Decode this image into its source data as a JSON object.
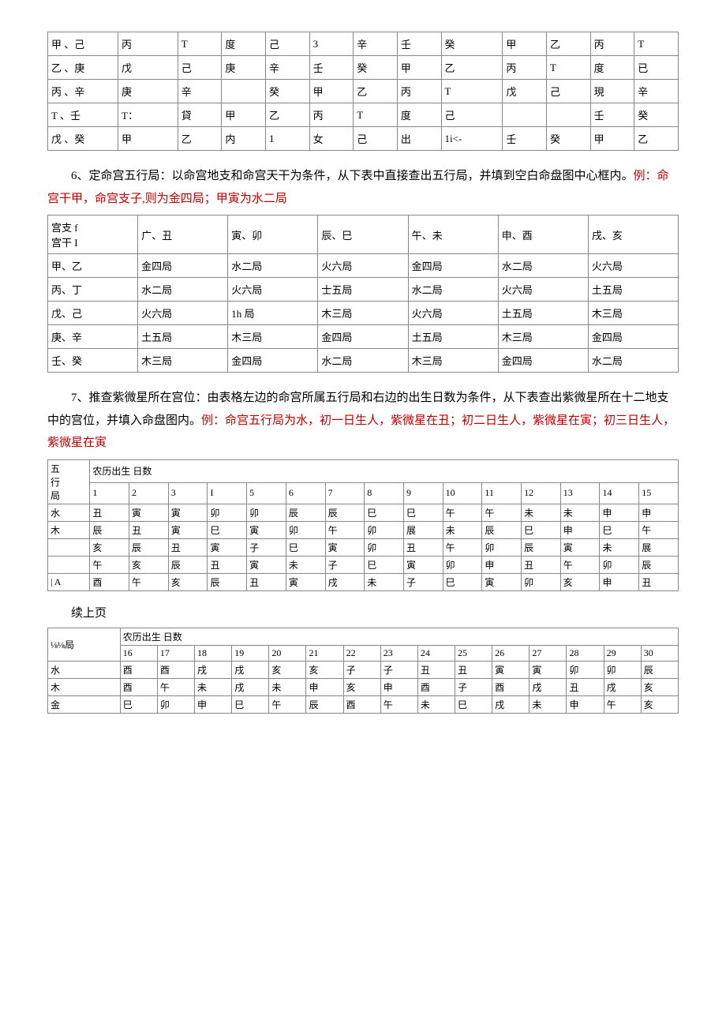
{
  "table1": {
    "rows": [
      [
        "甲 、己",
        "丙",
        "T",
        "度",
        "己",
        "3",
        "辛",
        "壬",
        "癸",
        "甲",
        "乙",
        "丙",
        "T"
      ],
      [
        "乙 、庚",
        "戊",
        "己",
        "庚",
        "辛",
        "壬",
        "癸",
        "甲",
        "乙",
        "丙",
        "T",
        "度",
        "已"
      ],
      [
        "丙 、辛",
        "庚",
        "辛",
        "",
        "癸",
        "甲",
        "乙",
        "丙",
        "T",
        "戊",
        "己",
        "現",
        "辛"
      ],
      [
        "T 、壬",
        "T：",
        "貸",
        "甲",
        "乙",
        "丙",
        "T",
        "度",
        "己",
        "",
        "",
        "壬",
        "癸"
      ],
      [
        "戊 、癸",
        "甲",
        "乙",
        "内",
        "1",
        "女",
        "己",
        "出",
        "1i<-",
        "壬",
        "癸",
        "甲",
        "乙"
      ]
    ]
  },
  "para6": {
    "black": "6、定命宫五行局：以命宫地支和命宫天干为条件，从下表中直接查出五行局，并填到空白命盘图中心框内。",
    "red": "例：命宫干甲，命宫支子,则为金四局；甲寅为水二局"
  },
  "table2": {
    "header_cell": {
      "line1": "宫支 f",
      "line2": "宫干 I"
    },
    "cols": [
      "广、丑",
      "寅、卯",
      "辰、巳",
      "午、未",
      "申、酉",
      "戌、亥"
    ],
    "rows": [
      [
        "甲、乙",
        "金四局",
        "水二局",
        "火六局",
        "金四局",
        "水二局",
        "火六局"
      ],
      [
        "丙、丁",
        "水二局",
        "火六局",
        "士五局",
        "水二局",
        "火六局",
        "土五局"
      ],
      [
        "戊、己",
        "火六局",
        "1h 局",
        "木三局",
        "火六局",
        "土五局",
        "木三局"
      ],
      [
        "庚、辛",
        "土五局",
        "木三局",
        "金四局",
        "土五局",
        "木三局",
        "金四局"
      ],
      [
        "壬、癸",
        "木三局",
        "金四局",
        "水二局",
        "木三局",
        "金四局",
        "水二局"
      ]
    ]
  },
  "para7": {
    "black": "7、推查紫微星所在宫位：由表格左边的命宫所属五行局和右边的出生日数为条件，从下表查出紫微星所在十二地支中的宫位，并填入命盘图内。",
    "red": "例：命宫五行局为水，初一日生人，紫微星在丑；初二日生人，紫微星在寅；初三日生人，紫微星在寅"
  },
  "table3": {
    "corner": {
      "line1": "五",
      "line2": "行",
      "line3": "局"
    },
    "group_header": "农历出生    日数",
    "days": [
      "1",
      "2",
      "3",
      "I",
      "5",
      "6",
      "7",
      "8",
      "9",
      "10",
      "11",
      "12",
      "13",
      "14",
      "15"
    ],
    "rows": [
      [
        "水",
        "丑",
        "寅",
        "寅",
        "卯",
        "卯",
        "辰",
        "辰",
        "巳",
        "巳",
        "午",
        "午",
        "未",
        "未",
        "申",
        "申"
      ],
      [
        "木",
        "辰",
        "丑",
        "寅",
        "巳",
        "寅",
        "卯",
        "午",
        "卯",
        "展",
        "未",
        "辰",
        "巳",
        "申",
        "巳",
        "午"
      ],
      [
        "",
        "亥",
        "辰",
        "丑",
        "寅",
        "子",
        "巳",
        "寅",
        "卯",
        "丑",
        "午",
        "卯",
        "辰",
        "寅",
        "未",
        "展"
      ],
      [
        "",
        "午",
        "亥",
        "辰",
        "丑",
        "寅",
        "未",
        "子",
        "巳",
        "寅",
        "卯",
        "申",
        "丑",
        "午",
        "卯",
        "辰"
      ],
      [
        "| A",
        "酉",
        "午",
        "亥",
        "辰",
        "丑",
        "寅",
        "戌",
        "未",
        "子",
        "巳",
        "寅",
        "卯",
        "亥",
        "申",
        "丑"
      ]
    ]
  },
  "continue_label": "续上页",
  "table4": {
    "corner": "⅛⅛局",
    "group_header": "农历出生    日数",
    "days": [
      "16",
      "17",
      "18",
      "19",
      "20",
      "21",
      "22",
      "23",
      "24",
      "25",
      "26",
      "27",
      "28",
      "29",
      "30"
    ],
    "rows": [
      [
        "水",
        "酉",
        "酉",
        "戌",
        "戌",
        "亥",
        "亥",
        "子",
        "子",
        "丑",
        "丑",
        "寅",
        "寅",
        "卯",
        "卯",
        "辰"
      ],
      [
        "木",
        "酉",
        "午",
        "未",
        "戌",
        "未",
        "申",
        "亥",
        "申",
        "酉",
        "子",
        "酉",
        "戌",
        "丑",
        "戌",
        "亥"
      ],
      [
        "金",
        "巳",
        "卯",
        "申",
        "巳",
        "午",
        "辰",
        "酉",
        "午",
        "未",
        "巳",
        "戌",
        "未",
        "申",
        "午",
        "亥"
      ]
    ]
  }
}
